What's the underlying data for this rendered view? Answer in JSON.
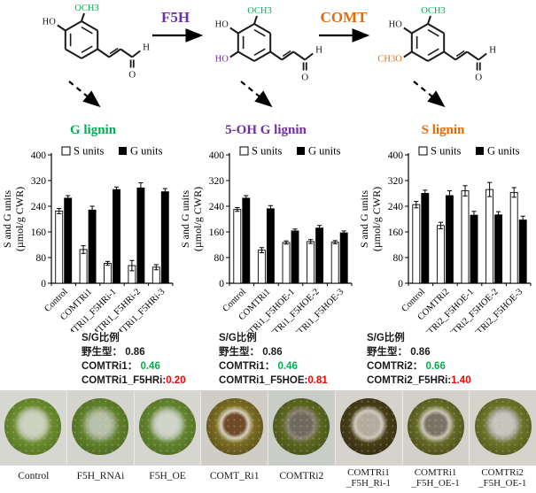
{
  "colors": {
    "green": "#00B050",
    "purple": "#7030A0",
    "orange": "#E36C09",
    "red": "#FF0000",
    "black": "#1a1a1a"
  },
  "pathway": {
    "molecules": [
      {
        "top_label": "OCH3",
        "top_color": "#00B050",
        "upper_left_label": "HO",
        "upper_left_color": "#1a1a1a",
        "lower_left_label": "",
        "lower_left_color": "",
        "aldehyde_h": "H",
        "aldehyde_o": "O"
      },
      {
        "top_label": "OCH3",
        "top_color": "#00B050",
        "upper_left_label": "HO",
        "upper_left_color": "#1a1a1a",
        "lower_left_label": "HO",
        "lower_left_color": "#7030A0",
        "aldehyde_h": "H",
        "aldehyde_o": "O"
      },
      {
        "top_label": "OCH3",
        "top_color": "#00B050",
        "upper_left_label": "HO",
        "upper_left_color": "#1a1a1a",
        "lower_left_label": "CH3O",
        "lower_left_color": "#E36C09",
        "aldehyde_h": "H",
        "aldehyde_o": "O"
      }
    ],
    "enzymes": [
      {
        "label": "F5H",
        "color": "#7030A0"
      },
      {
        "label": "COMT",
        "color": "#E36C09"
      }
    ],
    "lignins": [
      {
        "label": "G lignin",
        "color": "#00B050"
      },
      {
        "label": "5-OH G lignin",
        "color": "#7030A0"
      },
      {
        "label": "S lignin",
        "color": "#E36C09"
      }
    ]
  },
  "chart_data": [
    {
      "type": "bar",
      "title": "",
      "categories": [
        "Control",
        "COMTRi1",
        "COMTRi1_F5HRi-1",
        "COMTRi1_F5HRi-2",
        "COMTRi1_F5HRi-3"
      ],
      "series": [
        {
          "name": "S units",
          "values": [
            225,
            105,
            62,
            55,
            50
          ],
          "errors": [
            8,
            12,
            6,
            16,
            8
          ],
          "fill": "#ffffff"
        },
        {
          "name": "G units",
          "values": [
            265,
            228,
            292,
            297,
            285
          ],
          "errors": [
            8,
            12,
            8,
            16,
            10
          ],
          "fill": "#000000"
        }
      ],
      "ylabel_lines": [
        "S and G units",
        "(µmol/g CWR)"
      ],
      "ylim": [
        0,
        400
      ],
      "ytick_step": 80,
      "legend_position": "top",
      "grid": false
    },
    {
      "type": "bar",
      "title": "",
      "categories": [
        "Control",
        "COMTRi1",
        "COMTRi1_F5HOE-1",
        "COMTRi1_F5HOE-2",
        "COMTRi1_F5HOE-3"
      ],
      "series": [
        {
          "name": "S units",
          "values": [
            230,
            103,
            127,
            130,
            128
          ],
          "errors": [
            6,
            8,
            5,
            6,
            5
          ],
          "fill": "#ffffff"
        },
        {
          "name": "G units",
          "values": [
            265,
            232,
            163,
            172,
            157
          ],
          "errors": [
            8,
            10,
            6,
            8,
            6
          ],
          "fill": "#000000"
        }
      ],
      "ylabel_lines": [
        "S and G units",
        "(µmol/g CWR)"
      ],
      "ylim": [
        0,
        400
      ],
      "ytick_step": 80,
      "legend_position": "top",
      "grid": false
    },
    {
      "type": "bar",
      "title": "",
      "categories": [
        "Control",
        "COMTRi2",
        "COMTRi2_F5HOE-1",
        "COMTRi2_F5HOE-2",
        "COMTRi2_F5HOE-3"
      ],
      "series": [
        {
          "name": "S units",
          "values": [
            245,
            180,
            288,
            292,
            283
          ],
          "errors": [
            10,
            10,
            16,
            22,
            15
          ],
          "fill": "#ffffff"
        },
        {
          "name": "G units",
          "values": [
            280,
            273,
            212,
            213,
            197
          ],
          "errors": [
            10,
            15,
            12,
            10,
            12
          ],
          "fill": "#000000"
        }
      ],
      "ylabel_lines": [
        "S and G units",
        "(µmol/g CWR)"
      ],
      "ylim": [
        0,
        400
      ],
      "ytick_step": 80,
      "legend_position": "top",
      "grid": false
    }
  ],
  "ratios": [
    {
      "title": "S/G比例",
      "wild_label": "野生型：",
      "wild_value": "0.86",
      "ri_label": "COMTRi1：",
      "ri_value": "0.46",
      "combo_label": "COMTRi1_F5HRi:",
      "combo_value": "0.20"
    },
    {
      "title": "S/G比例",
      "wild_label": "野生型：",
      "wild_value": "0.86",
      "ri_label": "COMTRi1：",
      "ri_value": "0.46",
      "combo_label": "COMTRi1_F5HOE:",
      "combo_value": "0.81"
    },
    {
      "title": "S/G比例",
      "wild_label": "野生型：",
      "wild_value": "0.86",
      "ri_label": "COMTRi2：",
      "ri_value": "0.66",
      "combo_label": "COMTRi2_F5HRi:",
      "combo_value": "1.40"
    }
  ],
  "samples": [
    {
      "label_lines": [
        "Control"
      ],
      "bg": "#d7d7d2",
      "ring": "#6a8c2e",
      "ring_dark": "#4f6a1e",
      "center": "#cdd2bf",
      "center_edge": "#b9c3a4"
    },
    {
      "label_lines": [
        "F5H_RNAi"
      ],
      "bg": "#d4d4cf",
      "ring": "#5f8029",
      "ring_dark": "#49611c",
      "center": "#b7c0a8",
      "center_edge": "#9cab85"
    },
    {
      "label_lines": [
        "F5H_OE"
      ],
      "bg": "#d6d6d1",
      "ring": "#62842e",
      "ring_dark": "#4b661f",
      "center": "#ced5c8",
      "center_edge": "#b4c0a5"
    },
    {
      "label_lines": [
        "COMT_Ri1"
      ],
      "bg": "#cfcdc5",
      "ring": "#7a6c20",
      "ring_dark": "#53451a",
      "center": "#6f4a28",
      "center_edge": "#d8cfc0"
    },
    {
      "label_lines": [
        "COMTRi2"
      ],
      "bg": "#c8cdc8",
      "ring": "#5c661f",
      "ring_dark": "#3f4a16",
      "center": "#70695c",
      "center_edge": "#8a8274"
    },
    {
      "label_lines": [
        "COMTRi1",
        "_F5H_Ri-1"
      ],
      "bg": "#d6d3cc",
      "ring": "#473d16",
      "ring_dark": "#2e2810",
      "center": "#b3ab9e",
      "center_edge": "#cfc8bb"
    },
    {
      "label_lines": [
        "COMTRi1",
        "_F5H_OE-1"
      ],
      "bg": "#d2d0c8",
      "ring": "#646c26",
      "ring_dark": "#433f14",
      "center": "#7b7466",
      "center_edge": "#c9c4b6"
    },
    {
      "label_lines": [
        "COMTRi2",
        "_F5H_OE-1"
      ],
      "bg": "#d5d3cc",
      "ring": "#6b7428",
      "ring_dark": "#4a4f18",
      "center": "#c5c5bb",
      "center_edge": "#a8a89c"
    }
  ]
}
